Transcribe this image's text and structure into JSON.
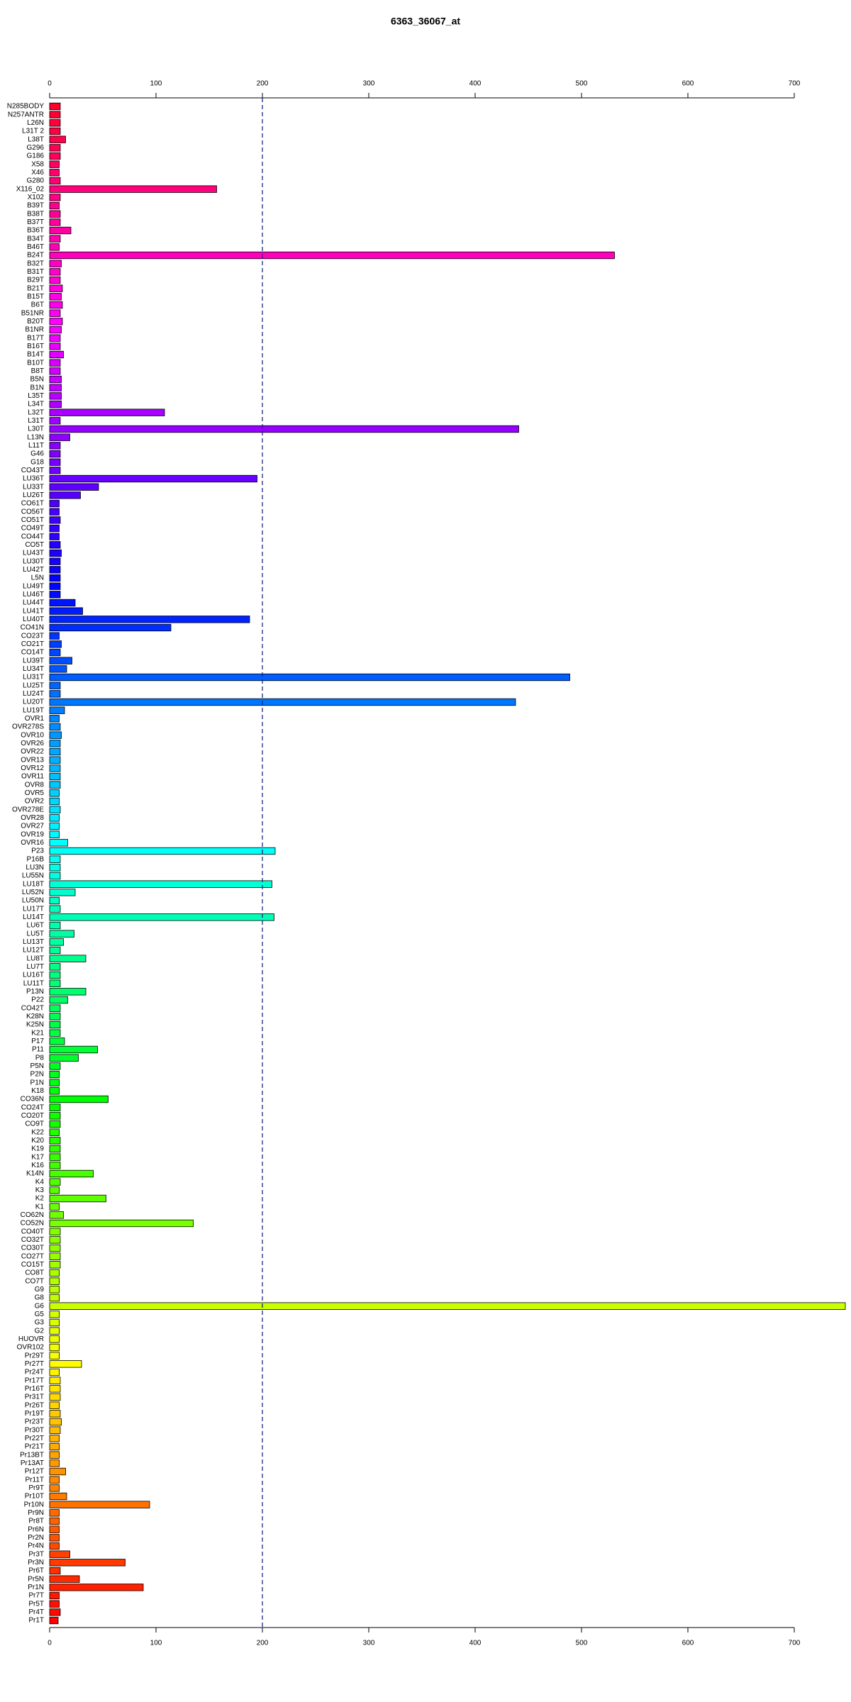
{
  "chart_data": {
    "type": "hbar",
    "title": "6363_36067_at",
    "categories": [
      "N285BODY",
      "N257ANTR",
      "L26N",
      "L31T 2",
      "L38T",
      "G296",
      "G186",
      "X58",
      "X46",
      "G280",
      "X116_02",
      "X102",
      "B39T",
      "B38T",
      "B37T",
      "B36T",
      "B34T",
      "B46T",
      "B24T",
      "B32T",
      "B31T",
      "B29T",
      "B21T",
      "B15T",
      "B6T",
      "B51NR",
      "B20T",
      "B1NR",
      "B17T",
      "B16T",
      "B14T",
      "B10T",
      "B8T",
      "B5N",
      "B1N",
      "L35T",
      "L34T",
      "L32T",
      "L31T",
      "L30T",
      "L13N",
      "L11T",
      "G46",
      "G18",
      "CO43T",
      "LU36T",
      "LU33T",
      "LU26T",
      "CO61T",
      "CO56T",
      "CO51T",
      "CO49T",
      "CO44T",
      "CO5T",
      "LU43T",
      "LU30T",
      "LU42T",
      "L5N",
      "LU49T",
      "LU46T",
      "LU44T",
      "LU41T",
      "LU40T",
      "CO41N",
      "CO23T",
      "CO21T",
      "CO14T",
      "LU39T",
      "LU34T",
      "LU31T",
      "LU25T",
      "LU24T",
      "LU20T",
      "LU19T",
      "OVR1",
      "OVR278S",
      "OVR10",
      "OVR26",
      "OVR22",
      "OVR13",
      "OVR12",
      "OVR11",
      "OVR8",
      "OVR5",
      "OVR2",
      "OVR278E",
      "OVR28",
      "OVR27",
      "OVR19",
      "OVR16",
      "P23",
      "P16B",
      "LU3N",
      "LU55N",
      "LU18T",
      "LU52N",
      "LU50N",
      "LU17T",
      "LU14T",
      "LU6T",
      "LU5T",
      "LU13T",
      "LU12T",
      "LU8T",
      "LU7T",
      "LU16T",
      "LU11T",
      "P13N",
      "P22",
      "CO42T",
      "K28N",
      "K25N",
      "K21",
      "P17",
      "P11",
      "P8",
      "P5N",
      "P2N",
      "P1N",
      "K18",
      "CO36N",
      "CO24T",
      "CO20T",
      "CO9T",
      "K22",
      "K20",
      "K19",
      "K17",
      "K16",
      "K14N",
      "K4",
      "K3",
      "K2",
      "K1",
      "CO62N",
      "CO52N",
      "CO40T",
      "CO32T",
      "CO30T",
      "CO27T",
      "CO15T",
      "CO8T",
      "CO7T",
      "G9",
      "G8",
      "G6",
      "G5",
      "G3",
      "G2",
      "HUOVR",
      "OVR102",
      "Pr29T",
      "Pr27T",
      "Pr24T",
      "Pr17T",
      "Pr16T",
      "Pr31T",
      "Pr26T",
      "Pr19T",
      "Pr23T",
      "Pr30T",
      "Pr22T",
      "Pr21T",
      "Pr13BT",
      "Pr13AT",
      "Pr12T",
      "Pr11T",
      "Pr9T",
      "Pr10T",
      "Pr10N",
      "Pr9N",
      "Pr8T",
      "Pr6N",
      "Pr2N",
      "Pr4N",
      "Pr3T",
      "Pr3N",
      "Pr6T",
      "Pr5N",
      "Pr1N",
      "Pr7T",
      "Pr5T",
      "Pr4T",
      "Pr1T"
    ],
    "values": [
      10,
      10,
      10,
      10,
      15,
      10,
      10,
      9,
      9,
      10,
      157,
      10,
      9,
      10,
      10,
      20,
      10,
      9,
      531,
      11,
      10,
      10,
      12,
      11,
      12,
      10,
      12,
      11,
      10,
      10,
      13,
      10,
      10,
      11,
      11,
      11,
      11,
      108,
      10,
      441,
      19,
      10,
      10,
      10,
      10,
      195,
      46,
      29,
      9,
      9,
      10,
      9,
      9,
      10,
      11,
      10,
      10,
      10,
      10,
      10,
      24,
      31,
      188,
      114,
      9,
      11,
      10,
      21,
      16,
      489,
      10,
      10,
      438,
      14,
      9,
      10,
      11,
      10,
      10,
      10,
      10,
      10,
      10,
      9,
      9,
      10,
      9,
      9,
      9,
      17,
      212,
      10,
      10,
      10,
      209,
      24,
      9,
      10,
      211,
      10,
      23,
      13,
      10,
      34,
      10,
      10,
      10,
      34,
      17,
      10,
      10,
      10,
      10,
      14,
      45,
      27,
      10,
      9,
      9,
      9,
      55,
      10,
      10,
      10,
      9,
      10,
      10,
      10,
      10,
      41,
      10,
      9,
      53,
      9,
      13,
      135,
      10,
      10,
      10,
      10,
      10,
      9,
      9,
      9,
      9,
      748,
      9,
      9,
      9,
      9,
      9,
      9,
      30,
      9,
      10,
      10,
      10,
      9,
      10,
      11,
      10,
      9,
      9,
      9,
      9,
      15,
      9,
      9,
      16,
      94,
      9,
      9,
      9,
      9,
      9,
      19,
      71,
      10,
      28,
      88,
      9,
      9,
      10,
      8
    ],
    "color_hue_range": [
      350,
      0
    ],
    "xlim": [
      0,
      700
    ],
    "xticks": [
      0,
      100,
      200,
      300,
      400,
      500,
      600,
      700
    ],
    "reference_line": 200
  }
}
